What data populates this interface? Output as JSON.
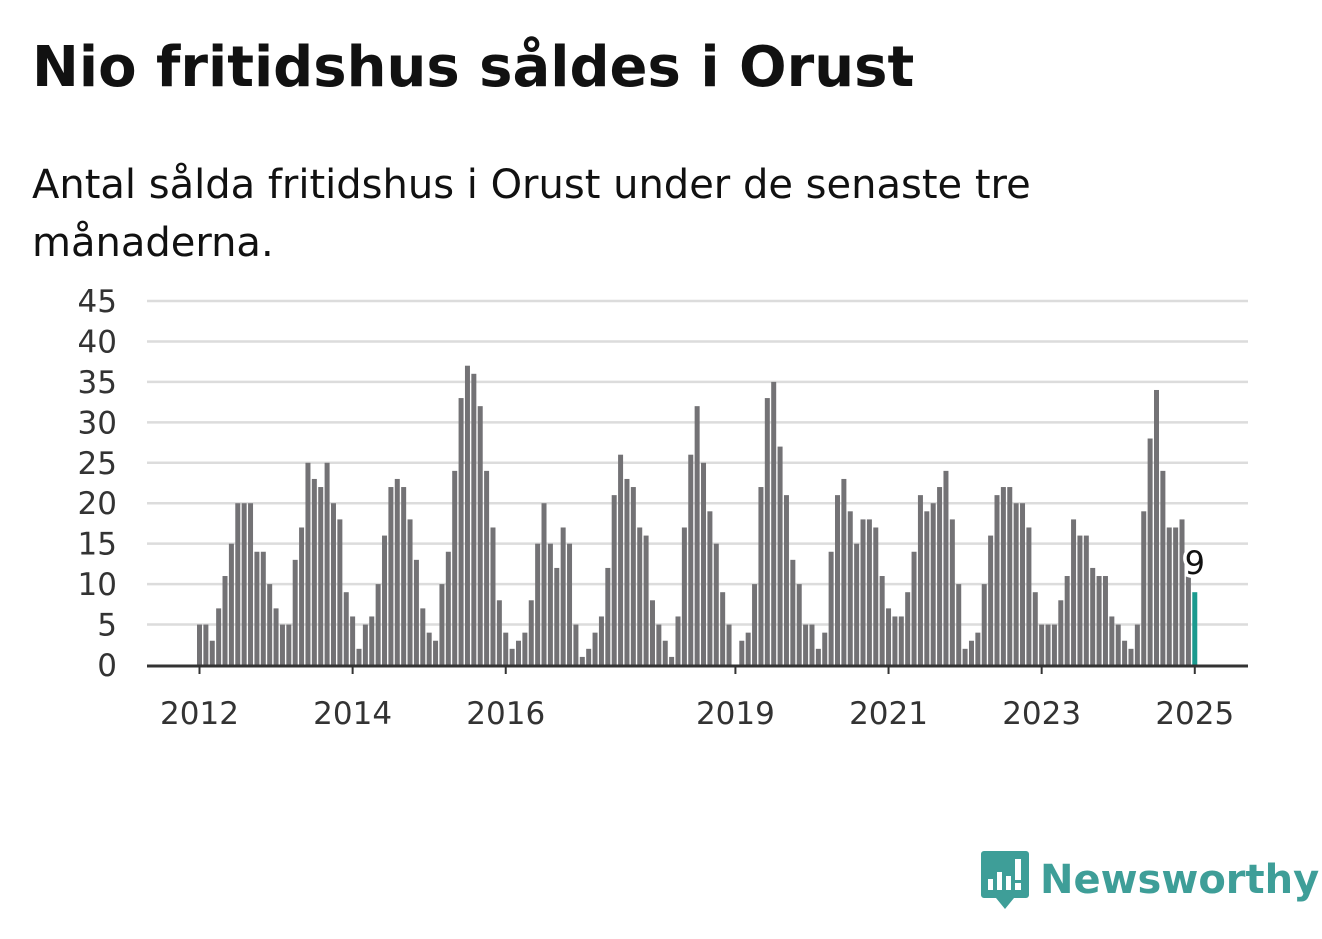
{
  "title": "Nio fritidshus såldes i Orust",
  "subtitle": "Antal sålda fritidshus i Orust under de senaste tre månaderna.",
  "brand": {
    "name": "Newsworthy",
    "icon": "newsworthy-logo-icon",
    "color": "#3e9e98"
  },
  "colors": {
    "bar": "#737275",
    "highlight": "#1a9a8e",
    "grid": "#dcdcdc",
    "axis": "#333333",
    "text": "#333333"
  },
  "chart_data": {
    "type": "bar",
    "title": "Nio fritidshus såldes i Orust",
    "subtitle": "Antal sålda fritidshus i Orust under de senaste tre månaderna.",
    "xlabel": "",
    "ylabel": "",
    "ylim": [
      0,
      45
    ],
    "yticks": [
      0,
      5,
      10,
      15,
      20,
      25,
      30,
      35,
      40,
      45
    ],
    "xticks": [
      "2012",
      "2014",
      "2016",
      "2019",
      "2021",
      "2023",
      "2025"
    ],
    "grid": true,
    "x_start": "2012-01",
    "frequency": "monthly",
    "highlight_label": "9",
    "values": [
      5,
      5,
      3,
      7,
      11,
      15,
      20,
      20,
      20,
      14,
      14,
      10,
      7,
      5,
      5,
      13,
      17,
      25,
      23,
      22,
      25,
      20,
      18,
      9,
      6,
      2,
      5,
      6,
      10,
      16,
      22,
      23,
      22,
      18,
      13,
      7,
      4,
      3,
      10,
      14,
      24,
      33,
      37,
      36,
      32,
      24,
      17,
      8,
      4,
      2,
      3,
      4,
      8,
      15,
      20,
      15,
      12,
      17,
      15,
      5,
      1,
      2,
      4,
      6,
      12,
      21,
      26,
      23,
      22,
      17,
      16,
      8,
      5,
      3,
      1,
      6,
      17,
      26,
      32,
      25,
      19,
      15,
      9,
      5,
      0,
      3,
      4,
      10,
      22,
      33,
      35,
      27,
      21,
      13,
      10,
      5,
      5,
      2,
      4,
      14,
      21,
      23,
      19,
      15,
      18,
      18,
      17,
      11,
      7,
      6,
      6,
      9,
      14,
      21,
      19,
      20,
      22,
      24,
      18,
      10,
      2,
      3,
      4,
      10,
      16,
      21,
      22,
      22,
      20,
      20,
      17,
      9,
      5,
      5,
      5,
      8,
      11,
      18,
      16,
      16,
      12,
      11,
      11,
      6,
      5,
      3,
      2,
      5,
      19,
      28,
      34,
      24,
      17,
      17,
      18,
      11,
      9
    ]
  }
}
